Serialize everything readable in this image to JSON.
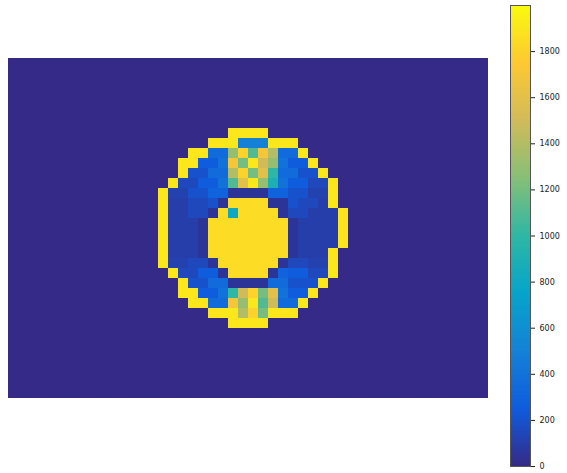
{
  "chart_data": {
    "type": "heatmap",
    "tick_labels": false,
    "colorbar_lim": [
      0,
      2000
    ],
    "colorbar_ticks": [
      0,
      200,
      400,
      600,
      800,
      1000,
      1200,
      1400,
      1600,
      1800
    ],
    "cells": [
      [
        0,
        0,
        0,
        0,
        0,
        0,
        0,
        0,
        0,
        0,
        0,
        0,
        0,
        0,
        0,
        0,
        0,
        0,
        0,
        0,
        0,
        0,
        0,
        0,
        0,
        0,
        0,
        0,
        0,
        0,
        0,
        0,
        0,
        0,
        0,
        0,
        0,
        0,
        0,
        0,
        0,
        0,
        0,
        0,
        0,
        0,
        0,
        0
      ],
      [
        0,
        0,
        0,
        0,
        0,
        0,
        0,
        0,
        0,
        0,
        0,
        0,
        0,
        0,
        0,
        0,
        0,
        0,
        0,
        0,
        0,
        0,
        0,
        0,
        0,
        0,
        0,
        0,
        0,
        0,
        0,
        0,
        0,
        0,
        0,
        0,
        0,
        0,
        0,
        0,
        0,
        0,
        0,
        0,
        0,
        0,
        0,
        0
      ],
      [
        0,
        0,
        0,
        0,
        0,
        0,
        0,
        0,
        0,
        0,
        0,
        0,
        0,
        0,
        0,
        0,
        0,
        0,
        0,
        0,
        0,
        0,
        0,
        0,
        0,
        0,
        0,
        0,
        0,
        0,
        0,
        0,
        0,
        0,
        0,
        0,
        0,
        0,
        0,
        0,
        0,
        0,
        0,
        0,
        0,
        0,
        0,
        0
      ],
      [
        0,
        0,
        0,
        0,
        0,
        0,
        0,
        0,
        0,
        0,
        0,
        0,
        0,
        0,
        0,
        0,
        0,
        0,
        0,
        0,
        0,
        0,
        0,
        0,
        0,
        0,
        0,
        0,
        0,
        0,
        0,
        0,
        0,
        0,
        0,
        0,
        0,
        0,
        0,
        0,
        0,
        0,
        0,
        0,
        0,
        0,
        0,
        0
      ],
      [
        0,
        0,
        0,
        0,
        0,
        0,
        0,
        0,
        0,
        0,
        0,
        0,
        0,
        0,
        0,
        0,
        0,
        0,
        0,
        0,
        0,
        0,
        0,
        0,
        0,
        0,
        0,
        0,
        0,
        0,
        0,
        0,
        0,
        0,
        0,
        0,
        0,
        0,
        0,
        0,
        0,
        0,
        0,
        0,
        0,
        0,
        0,
        0
      ],
      [
        0,
        0,
        0,
        0,
        0,
        0,
        0,
        0,
        0,
        0,
        0,
        0,
        0,
        0,
        0,
        0,
        0,
        0,
        0,
        0,
        0,
        0,
        0,
        0,
        0,
        0,
        0,
        0,
        0,
        0,
        0,
        0,
        0,
        0,
        0,
        0,
        0,
        0,
        0,
        0,
        0,
        0,
        0,
        0,
        0,
        0,
        0,
        0
      ],
      [
        0,
        0,
        0,
        0,
        0,
        0,
        0,
        0,
        0,
        0,
        0,
        0,
        0,
        0,
        0,
        0,
        0,
        0,
        0,
        0,
        0,
        0,
        0,
        0,
        0,
        0,
        0,
        0,
        0,
        0,
        0,
        0,
        0,
        0,
        0,
        0,
        0,
        0,
        0,
        0,
        0,
        0,
        0,
        0,
        0,
        0,
        0,
        0
      ],
      [
        0,
        0,
        0,
        0,
        0,
        0,
        0,
        0,
        0,
        0,
        0,
        0,
        0,
        0,
        0,
        0,
        0,
        0,
        0,
        0,
        0,
        0,
        1900,
        1900,
        1900,
        1900,
        0,
        0,
        0,
        0,
        0,
        0,
        0,
        0,
        0,
        0,
        0,
        0,
        0,
        0,
        0,
        0,
        0,
        0,
        0,
        0,
        0,
        0
      ],
      [
        0,
        0,
        0,
        0,
        0,
        0,
        0,
        0,
        0,
        0,
        0,
        0,
        0,
        0,
        0,
        0,
        0,
        0,
        0,
        0,
        1900,
        1900,
        1900,
        500,
        500,
        500,
        1900,
        1900,
        1900,
        0,
        0,
        0,
        0,
        0,
        0,
        0,
        0,
        0,
        0,
        0,
        0,
        0,
        0,
        0,
        0,
        0,
        0,
        0
      ],
      [
        0,
        0,
        0,
        0,
        0,
        0,
        0,
        0,
        0,
        0,
        0,
        0,
        0,
        0,
        0,
        0,
        0,
        0,
        1900,
        1900,
        350,
        350,
        1300,
        1800,
        1100,
        1700,
        1400,
        350,
        350,
        1900,
        0,
        0,
        0,
        0,
        0,
        0,
        0,
        0,
        0,
        0,
        0,
        0,
        0,
        0,
        0,
        0,
        0,
        0
      ],
      [
        0,
        0,
        0,
        0,
        0,
        0,
        0,
        0,
        0,
        0,
        0,
        0,
        0,
        0,
        0,
        0,
        0,
        1900,
        1900,
        250,
        250,
        400,
        1700,
        1200,
        1900,
        1500,
        1300,
        400,
        250,
        250,
        1900,
        0,
        0,
        0,
        0,
        0,
        0,
        0,
        0,
        0,
        0,
        0,
        0,
        0,
        0,
        0,
        0,
        0
      ],
      [
        0,
        0,
        0,
        0,
        0,
        0,
        0,
        0,
        0,
        0,
        0,
        0,
        0,
        0,
        0,
        0,
        0,
        1900,
        200,
        200,
        350,
        350,
        1400,
        1800,
        1200,
        1600,
        1000,
        350,
        350,
        200,
        200,
        1900,
        0,
        0,
        0,
        0,
        0,
        0,
        0,
        0,
        0,
        0,
        0,
        0,
        0,
        0,
        0,
        0
      ],
      [
        0,
        0,
        0,
        0,
        0,
        0,
        0,
        0,
        0,
        0,
        0,
        0,
        0,
        0,
        0,
        0,
        1900,
        150,
        150,
        250,
        250,
        400,
        1100,
        1600,
        1900,
        1300,
        900,
        400,
        250,
        250,
        150,
        150,
        1900,
        0,
        0,
        0,
        0,
        0,
        0,
        0,
        0,
        0,
        0,
        0,
        0,
        0,
        0,
        0
      ],
      [
        0,
        0,
        0,
        0,
        0,
        0,
        0,
        0,
        0,
        0,
        0,
        0,
        0,
        0,
        0,
        1900,
        120,
        120,
        200,
        200,
        300,
        300,
        50,
        50,
        50,
        50,
        300,
        300,
        200,
        200,
        120,
        120,
        1900,
        0,
        0,
        0,
        0,
        0,
        0,
        0,
        0,
        0,
        0,
        0,
        0,
        0,
        0,
        0
      ],
      [
        0,
        0,
        0,
        0,
        0,
        0,
        0,
        0,
        0,
        0,
        0,
        0,
        0,
        0,
        0,
        1900,
        100,
        100,
        150,
        150,
        200,
        50,
        1850,
        1850,
        1850,
        1850,
        50,
        50,
        200,
        150,
        150,
        100,
        1900,
        0,
        0,
        0,
        0,
        0,
        0,
        0,
        0,
        0,
        0,
        0,
        0,
        0,
        0,
        0
      ],
      [
        0,
        0,
        0,
        0,
        0,
        0,
        0,
        0,
        0,
        0,
        0,
        0,
        0,
        0,
        0,
        1900,
        100,
        100,
        150,
        150,
        50,
        1850,
        800,
        1850,
        1850,
        1850,
        1850,
        50,
        150,
        150,
        100,
        100,
        100,
        1900,
        0,
        0,
        0,
        0,
        0,
        0,
        0,
        0,
        0,
        0,
        0,
        0,
        0,
        0
      ],
      [
        0,
        0,
        0,
        0,
        0,
        0,
        0,
        0,
        0,
        0,
        0,
        0,
        0,
        0,
        0,
        1900,
        100,
        100,
        100,
        50,
        1850,
        1850,
        1850,
        1850,
        1850,
        1850,
        1850,
        1850,
        50,
        100,
        100,
        100,
        100,
        1900,
        0,
        0,
        0,
        0,
        0,
        0,
        0,
        0,
        0,
        0,
        0,
        0,
        0,
        0
      ],
      [
        0,
        0,
        0,
        0,
        0,
        0,
        0,
        0,
        0,
        0,
        0,
        0,
        0,
        0,
        0,
        1900,
        100,
        100,
        100,
        50,
        1850,
        1850,
        1850,
        1850,
        1850,
        1850,
        1850,
        1850,
        50,
        100,
        100,
        100,
        100,
        1900,
        0,
        0,
        0,
        0,
        0,
        0,
        0,
        0,
        0,
        0,
        0,
        0,
        0,
        0
      ],
      [
        0,
        0,
        0,
        0,
        0,
        0,
        0,
        0,
        0,
        0,
        0,
        0,
        0,
        0,
        0,
        1900,
        100,
        100,
        100,
        50,
        1850,
        1850,
        1850,
        1850,
        1850,
        1850,
        1850,
        1850,
        50,
        100,
        100,
        100,
        100,
        1900,
        0,
        0,
        0,
        0,
        0,
        0,
        0,
        0,
        0,
        0,
        0,
        0,
        0,
        0
      ],
      [
        0,
        0,
        0,
        0,
        0,
        0,
        0,
        0,
        0,
        0,
        0,
        0,
        0,
        0,
        0,
        1900,
        100,
        100,
        100,
        50,
        1850,
        1850,
        1850,
        1850,
        1850,
        1850,
        1850,
        1850,
        50,
        100,
        100,
        100,
        1900,
        0,
        0,
        0,
        0,
        0,
        0,
        0,
        0,
        0,
        0,
        0,
        0,
        0,
        0,
        0
      ],
      [
        0,
        0,
        0,
        0,
        0,
        0,
        0,
        0,
        0,
        0,
        0,
        0,
        0,
        0,
        0,
        1900,
        120,
        120,
        150,
        150,
        50,
        1850,
        1850,
        1850,
        1850,
        1850,
        1850,
        50,
        150,
        150,
        120,
        120,
        1900,
        0,
        0,
        0,
        0,
        0,
        0,
        0,
        0,
        0,
        0,
        0,
        0,
        0,
        0,
        0
      ],
      [
        0,
        0,
        0,
        0,
        0,
        0,
        0,
        0,
        0,
        0,
        0,
        0,
        0,
        0,
        0,
        0,
        1900,
        150,
        150,
        250,
        250,
        50,
        1850,
        1850,
        1850,
        1850,
        50,
        300,
        250,
        250,
        150,
        150,
        1900,
        0,
        0,
        0,
        0,
        0,
        0,
        0,
        0,
        0,
        0,
        0,
        0,
        0,
        0,
        0
      ],
      [
        0,
        0,
        0,
        0,
        0,
        0,
        0,
        0,
        0,
        0,
        0,
        0,
        0,
        0,
        0,
        0,
        0,
        1900,
        200,
        200,
        350,
        350,
        50,
        50,
        50,
        50,
        350,
        350,
        200,
        200,
        200,
        1900,
        0,
        0,
        0,
        0,
        0,
        0,
        0,
        0,
        0,
        0,
        0,
        0,
        0,
        0,
        0,
        0
      ],
      [
        0,
        0,
        0,
        0,
        0,
        0,
        0,
        0,
        0,
        0,
        0,
        0,
        0,
        0,
        0,
        0,
        0,
        1900,
        1900,
        250,
        250,
        400,
        1000,
        1500,
        1800,
        1200,
        1600,
        400,
        250,
        250,
        1900,
        0,
        0,
        0,
        0,
        0,
        0,
        0,
        0,
        0,
        0,
        0,
        0,
        0,
        0,
        0,
        0,
        0
      ],
      [
        0,
        0,
        0,
        0,
        0,
        0,
        0,
        0,
        0,
        0,
        0,
        0,
        0,
        0,
        0,
        0,
        0,
        0,
        1900,
        1900,
        350,
        350,
        1700,
        1300,
        1900,
        1100,
        1500,
        350,
        350,
        1900,
        0,
        0,
        0,
        0,
        0,
        0,
        0,
        0,
        0,
        0,
        0,
        0,
        0,
        0,
        0,
        0,
        0,
        0
      ],
      [
        0,
        0,
        0,
        0,
        0,
        0,
        0,
        0,
        0,
        0,
        0,
        0,
        0,
        0,
        0,
        0,
        0,
        0,
        0,
        0,
        1900,
        1900,
        1900,
        1400,
        1800,
        1200,
        1900,
        1900,
        1900,
        0,
        0,
        0,
        0,
        0,
        0,
        0,
        0,
        0,
        0,
        0,
        0,
        0,
        0,
        0,
        0,
        0,
        0,
        0
      ],
      [
        0,
        0,
        0,
        0,
        0,
        0,
        0,
        0,
        0,
        0,
        0,
        0,
        0,
        0,
        0,
        0,
        0,
        0,
        0,
        0,
        0,
        0,
        1900,
        1900,
        1900,
        1900,
        0,
        0,
        0,
        0,
        0,
        0,
        0,
        0,
        0,
        0,
        0,
        0,
        0,
        0,
        0,
        0,
        0,
        0,
        0,
        0,
        0,
        0
      ],
      [
        0,
        0,
        0,
        0,
        0,
        0,
        0,
        0,
        0,
        0,
        0,
        0,
        0,
        0,
        0,
        0,
        0,
        0,
        0,
        0,
        0,
        0,
        0,
        0,
        0,
        0,
        0,
        0,
        0,
        0,
        0,
        0,
        0,
        0,
        0,
        0,
        0,
        0,
        0,
        0,
        0,
        0,
        0,
        0,
        0,
        0,
        0,
        0
      ],
      [
        0,
        0,
        0,
        0,
        0,
        0,
        0,
        0,
        0,
        0,
        0,
        0,
        0,
        0,
        0,
        0,
        0,
        0,
        0,
        0,
        0,
        0,
        0,
        0,
        0,
        0,
        0,
        0,
        0,
        0,
        0,
        0,
        0,
        0,
        0,
        0,
        0,
        0,
        0,
        0,
        0,
        0,
        0,
        0,
        0,
        0,
        0,
        0
      ],
      [
        0,
        0,
        0,
        0,
        0,
        0,
        0,
        0,
        0,
        0,
        0,
        0,
        0,
        0,
        0,
        0,
        0,
        0,
        0,
        0,
        0,
        0,
        0,
        0,
        0,
        0,
        0,
        0,
        0,
        0,
        0,
        0,
        0,
        0,
        0,
        0,
        0,
        0,
        0,
        0,
        0,
        0,
        0,
        0,
        0,
        0,
        0,
        0
      ],
      [
        0,
        0,
        0,
        0,
        0,
        0,
        0,
        0,
        0,
        0,
        0,
        0,
        0,
        0,
        0,
        0,
        0,
        0,
        0,
        0,
        0,
        0,
        0,
        0,
        0,
        0,
        0,
        0,
        0,
        0,
        0,
        0,
        0,
        0,
        0,
        0,
        0,
        0,
        0,
        0,
        0,
        0,
        0,
        0,
        0,
        0,
        0,
        0
      ],
      [
        0,
        0,
        0,
        0,
        0,
        0,
        0,
        0,
        0,
        0,
        0,
        0,
        0,
        0,
        0,
        0,
        0,
        0,
        0,
        0,
        0,
        0,
        0,
        0,
        0,
        0,
        0,
        0,
        0,
        0,
        0,
        0,
        0,
        0,
        0,
        0,
        0,
        0,
        0,
        0,
        0,
        0,
        0,
        0,
        0,
        0,
        0,
        0
      ],
      [
        0,
        0,
        0,
        0,
        0,
        0,
        0,
        0,
        0,
        0,
        0,
        0,
        0,
        0,
        0,
        0,
        0,
        0,
        0,
        0,
        0,
        0,
        0,
        0,
        0,
        0,
        0,
        0,
        0,
        0,
        0,
        0,
        0,
        0,
        0,
        0,
        0,
        0,
        0,
        0,
        0,
        0,
        0,
        0,
        0,
        0,
        0,
        0
      ],
      [
        0,
        0,
        0,
        0,
        0,
        0,
        0,
        0,
        0,
        0,
        0,
        0,
        0,
        0,
        0,
        0,
        0,
        0,
        0,
        0,
        0,
        0,
        0,
        0,
        0,
        0,
        0,
        0,
        0,
        0,
        0,
        0,
        0,
        0,
        0,
        0,
        0,
        0,
        0,
        0,
        0,
        0,
        0,
        0,
        0,
        0,
        0,
        0
      ]
    ]
  }
}
